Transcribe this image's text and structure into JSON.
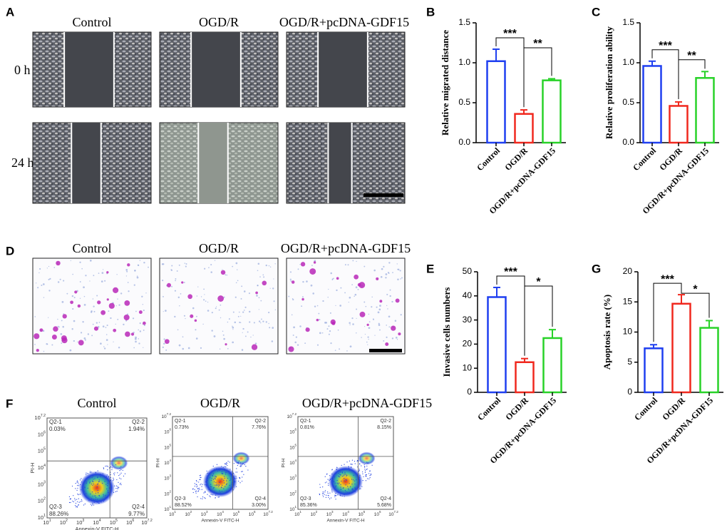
{
  "panel_labels": [
    "A",
    "D",
    "F"
  ],
  "groups": [
    "Control",
    "OGD/R",
    "OGD/R+pcDNA-GDF15"
  ],
  "time_labels": [
    "0 h",
    "24 h"
  ],
  "flow": {
    "y_title": "PI-H",
    "x_title": "Annexin-V FITC-H",
    "tick_base": "10",
    "tick_exps": [
      "1",
      "2",
      "3",
      "4",
      "5",
      "6",
      "7.2"
    ],
    "plots": [
      {
        "quadrants": [
          {
            "name": "Q2-1",
            "pct": "0.03%"
          },
          {
            "name": "Q2-2",
            "pct": "1.94%"
          },
          {
            "name": "Q2-3",
            "pct": "88.26%"
          },
          {
            "name": "Q2-4",
            "pct": "9.77%"
          }
        ]
      },
      {
        "quadrants": [
          {
            "name": "Q2-1",
            "pct": "0.73%"
          },
          {
            "name": "Q2-2",
            "pct": "7.76%"
          },
          {
            "name": "Q2-3",
            "pct": "88.52%"
          },
          {
            "name": "Q2-4",
            "pct": "3.00%"
          }
        ]
      },
      {
        "quadrants": [
          {
            "name": "Q2-1",
            "pct": "0.81%"
          },
          {
            "name": "Q2-2",
            "pct": "8.15%"
          },
          {
            "name": "Q2-3",
            "pct": "85.36%"
          },
          {
            "name": "Q2-4",
            "pct": "5.68%"
          }
        ]
      }
    ]
  },
  "chart_data": [
    {
      "type": "bar",
      "label": "B",
      "ylabel": "Relative migrated distance",
      "categories": [
        "Control",
        "OGD/R",
        "OGD/R+pcDNA-GDF15"
      ],
      "values": [
        1.02,
        0.36,
        0.78
      ],
      "errors": [
        0.15,
        0.05,
        0.02
      ],
      "colors": [
        "#1f3ff0",
        "#f0281e",
        "#28d228"
      ],
      "ylim": [
        0,
        1.5
      ],
      "yticks": [
        {
          "value": 0,
          "label": "0.0"
        },
        {
          "value": 0.5,
          "label": "0.5"
        },
        {
          "value": 1,
          "label": "1.0"
        },
        {
          "value": 1.5,
          "label": "1.5"
        }
      ],
      "brackets": [
        {
          "from": 0,
          "to": 1,
          "label": "***"
        },
        {
          "from": 1,
          "to": 2,
          "label": "**"
        }
      ]
    },
    {
      "type": "bar",
      "label": "C",
      "ylabel": "Relative proliferation ability",
      "categories": [
        "Control",
        "OGD/R",
        "OGD/R+pcDNA-GDF15"
      ],
      "values": [
        0.96,
        0.46,
        0.81
      ],
      "errors": [
        0.06,
        0.05,
        0.08
      ],
      "colors": [
        "#1f3ff0",
        "#f0281e",
        "#28d228"
      ],
      "ylim": [
        0,
        1.5
      ],
      "yticks": [
        {
          "value": 0,
          "label": "0.0"
        },
        {
          "value": 0.5,
          "label": "0.5"
        },
        {
          "value": 1,
          "label": "1.0"
        },
        {
          "value": 1.5,
          "label": "1.5"
        }
      ],
      "brackets": [
        {
          "from": 0,
          "to": 1,
          "label": "***"
        },
        {
          "from": 1,
          "to": 2,
          "label": "**"
        }
      ]
    },
    {
      "type": "bar",
      "label": "E",
      "ylabel": "Invasive cells numbers",
      "categories": [
        "Control",
        "OGD/R",
        "OGD/R+pcDNA-GDF15"
      ],
      "values": [
        39.5,
        12.5,
        22.5
      ],
      "errors": [
        4,
        1.5,
        3.5
      ],
      "colors": [
        "#1f3ff0",
        "#f0281e",
        "#28d228"
      ],
      "ylim": [
        0,
        50
      ],
      "yticks": [
        0,
        10,
        20,
        30,
        40,
        50
      ],
      "brackets": [
        {
          "from": 0,
          "to": 1,
          "label": "***"
        },
        {
          "from": 1,
          "to": 2,
          "label": "*"
        }
      ]
    },
    {
      "type": "bar",
      "label": "G",
      "ylabel": "Apoptosis rate (%)",
      "categories": [
        "Control",
        "OGD/R",
        "OGD/R+pcDNA-GDF15"
      ],
      "values": [
        7.3,
        14.7,
        10.7
      ],
      "errors": [
        0.6,
        1.5,
        1.2
      ],
      "colors": [
        "#1f3ff0",
        "#f0281e",
        "#28d228"
      ],
      "ylim": [
        0,
        20
      ],
      "yticks": [
        0,
        5,
        10,
        15,
        20
      ],
      "brackets": [
        {
          "from": 0,
          "to": 1,
          "label": "***"
        },
        {
          "from": 1,
          "to": 2,
          "label": "*"
        }
      ]
    }
  ]
}
